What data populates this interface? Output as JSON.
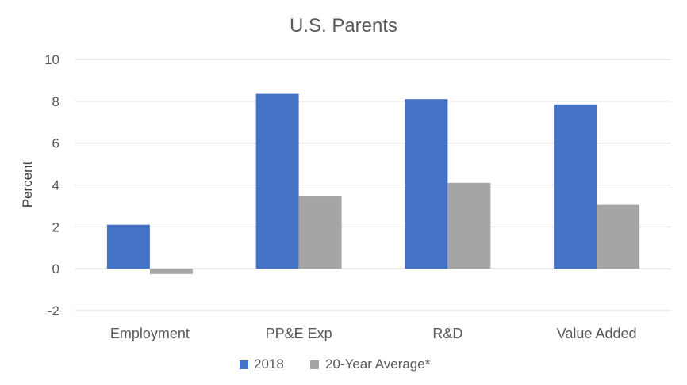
{
  "chart_data": {
    "type": "bar",
    "title": "U.S. Parents",
    "xlabel": "",
    "ylabel": "Percent",
    "categories": [
      "Employment",
      "PP&E Exp",
      "R&D",
      "Value Added"
    ],
    "series": [
      {
        "name": "2018",
        "color": "#4472C4",
        "values": [
          2.1,
          8.35,
          8.1,
          7.85
        ]
      },
      {
        "name": "20-Year Average*",
        "color": "#A5A5A5",
        "values": [
          -0.25,
          3.45,
          4.1,
          3.05
        ]
      }
    ],
    "ylim": [
      -2,
      10
    ],
    "yticks": [
      "10",
      "8",
      "6",
      "4",
      "2",
      "0",
      "-2"
    ],
    "grid": true,
    "legend_position": "bottom"
  }
}
